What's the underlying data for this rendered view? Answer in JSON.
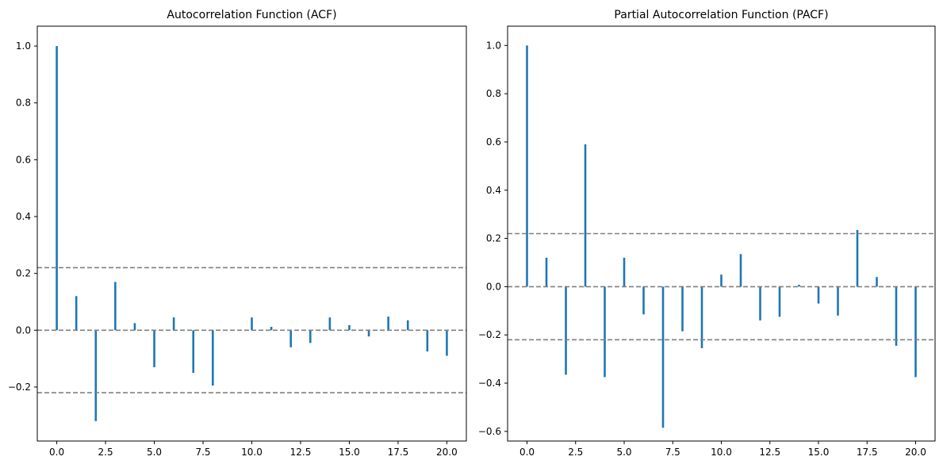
{
  "chart_data": [
    {
      "type": "bar",
      "title": "Autocorrelation Function (ACF)",
      "xlabel": "",
      "ylabel": "",
      "x": [
        0,
        1,
        2,
        3,
        4,
        5,
        6,
        7,
        8,
        9,
        10,
        11,
        12,
        13,
        14,
        15,
        16,
        17,
        18,
        19,
        20
      ],
      "values": [
        1.0,
        0.12,
        -0.32,
        0.17,
        0.025,
        -0.13,
        0.045,
        -0.15,
        -0.195,
        0.0,
        0.045,
        0.012,
        -0.06,
        -0.045,
        0.045,
        0.018,
        -0.022,
        0.048,
        0.035,
        -0.075,
        -0.09
      ],
      "confidence_bounds": [
        0.22,
        -0.22
      ],
      "zero_line": 0,
      "xlim": [
        -1.0,
        21.0
      ],
      "ylim": [
        -0.39,
        1.07
      ],
      "xticks": [
        0.0,
        2.5,
        5.0,
        7.5,
        10.0,
        12.5,
        15.0,
        17.5,
        20.0
      ],
      "xtick_labels": [
        "0.0",
        "2.5",
        "5.0",
        "7.5",
        "10.0",
        "12.5",
        "15.0",
        "17.5",
        "20.0"
      ],
      "yticks": [
        -0.2,
        0.0,
        0.2,
        0.4,
        0.6,
        0.8,
        1.0
      ],
      "ytick_labels": [
        "−0.2",
        "0.0",
        "0.2",
        "0.4",
        "0.6",
        "0.8",
        "1.0"
      ],
      "grid": false,
      "colors": {
        "bar": "#1f77b4",
        "reference_lines": "#808080"
      }
    },
    {
      "type": "bar",
      "title": "Partial Autocorrelation Function (PACF)",
      "xlabel": "",
      "ylabel": "",
      "x": [
        0,
        1,
        2,
        3,
        4,
        5,
        6,
        7,
        8,
        9,
        10,
        11,
        12,
        13,
        14,
        15,
        16,
        17,
        18,
        19,
        20
      ],
      "values": [
        1.0,
        0.12,
        -0.365,
        0.59,
        -0.375,
        0.12,
        -0.115,
        -0.585,
        -0.185,
        -0.255,
        0.05,
        0.135,
        -0.14,
        -0.125,
        0.008,
        -0.07,
        -0.12,
        0.235,
        0.04,
        -0.245,
        -0.375
      ],
      "confidence_bounds": [
        0.22,
        -0.22
      ],
      "zero_line": 0,
      "xlim": [
        -1.0,
        21.0
      ],
      "ylim": [
        -0.64,
        1.08
      ],
      "xticks": [
        0.0,
        2.5,
        5.0,
        7.5,
        10.0,
        12.5,
        15.0,
        17.5,
        20.0
      ],
      "xtick_labels": [
        "0.0",
        "2.5",
        "5.0",
        "7.5",
        "10.0",
        "12.5",
        "15.0",
        "17.5",
        "20.0"
      ],
      "yticks": [
        -0.6,
        -0.4,
        -0.2,
        0.0,
        0.2,
        0.4,
        0.6,
        0.8,
        1.0
      ],
      "ytick_labels": [
        "−0.6",
        "−0.4",
        "−0.2",
        "0.0",
        "0.2",
        "0.4",
        "0.6",
        "0.8",
        "1.0"
      ],
      "grid": false,
      "colors": {
        "bar": "#1f77b4",
        "reference_lines": "#808080"
      }
    }
  ]
}
